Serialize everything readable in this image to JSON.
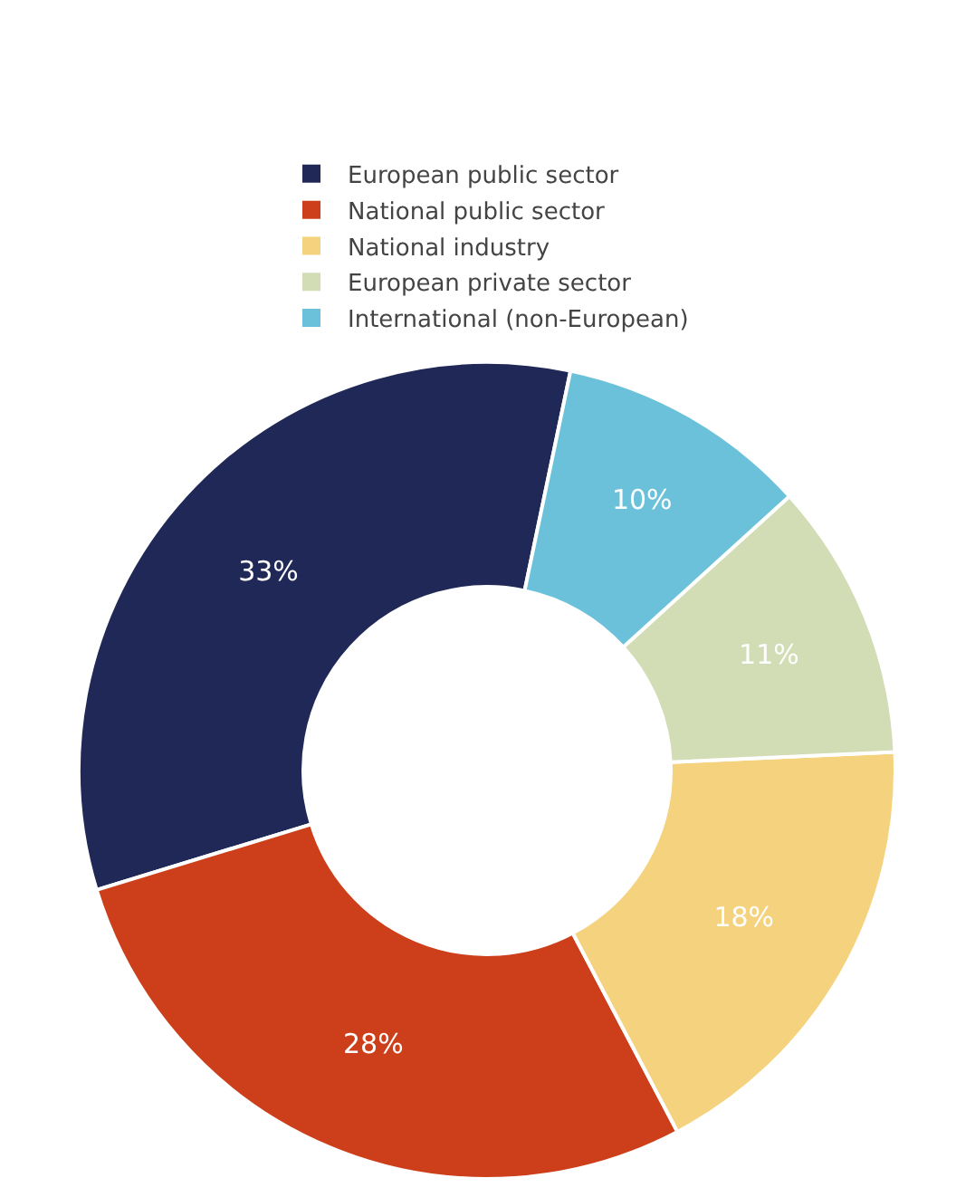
{
  "chart_data": {
    "type": "donut",
    "categories": [
      "European public sector",
      "National public sector",
      "National industry",
      "European private sector",
      "International (non-European)"
    ],
    "values": [
      33,
      28,
      18,
      11,
      10
    ],
    "value_labels": [
      "33%",
      "28%",
      "18%",
      "11%",
      "10%"
    ],
    "colors": [
      "#1f2856",
      "#cc3f1a",
      "#f5d27e",
      "#d2dcb5",
      "#6cc1da"
    ],
    "legend": "top"
  }
}
